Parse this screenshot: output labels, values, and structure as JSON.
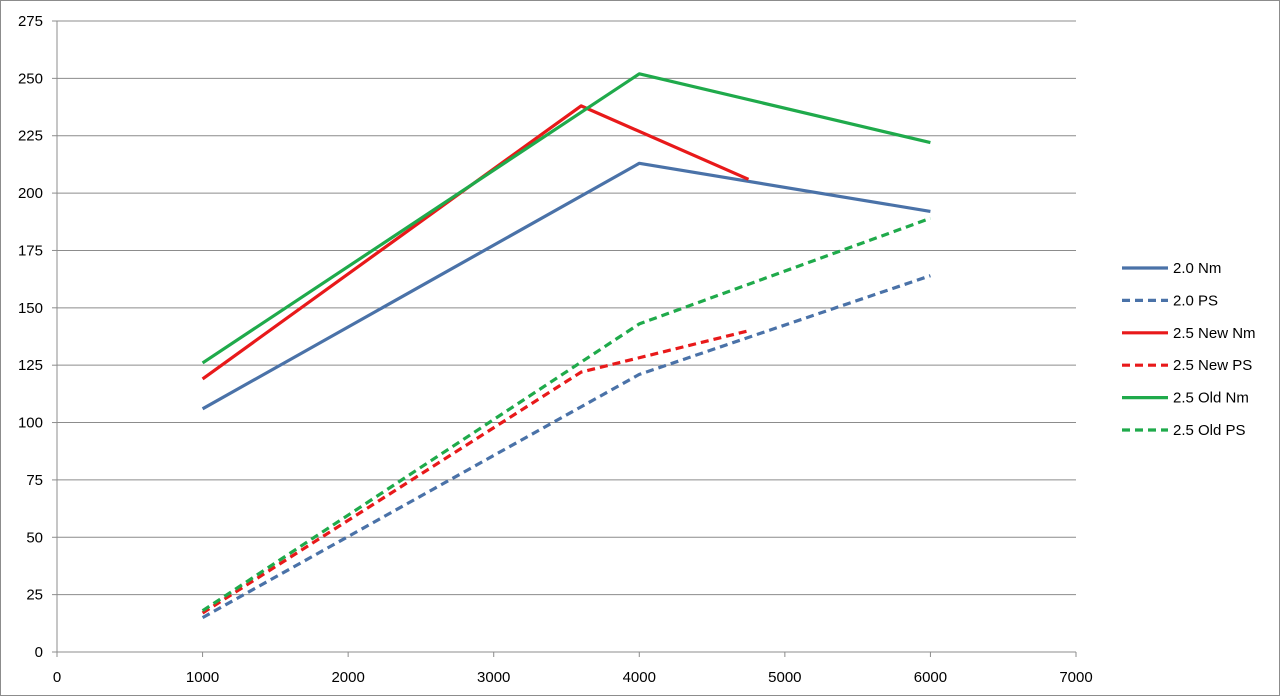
{
  "chart_data": {
    "type": "line",
    "title": "",
    "xlabel": "",
    "ylabel": "",
    "xlim": [
      0,
      7000
    ],
    "ylim": [
      0,
      275
    ],
    "x_ticks": [
      0,
      1000,
      2000,
      3000,
      4000,
      5000,
      6000,
      7000
    ],
    "y_ticks": [
      0,
      25,
      50,
      75,
      100,
      125,
      150,
      175,
      200,
      225,
      250,
      275
    ],
    "grid": "horizontal",
    "legend_position": "right",
    "series": [
      {
        "name": "2.0 Nm",
        "color": "#4a72a8",
        "dashed": false,
        "x": [
          1000,
          4000,
          6000
        ],
        "y": [
          106,
          213,
          192
        ]
      },
      {
        "name": "2.0 PS",
        "color": "#4a72a8",
        "dashed": true,
        "x": [
          1000,
          4000,
          6000
        ],
        "y": [
          15,
          121,
          164
        ]
      },
      {
        "name": "2.5 New Nm",
        "color": "#e8191a",
        "dashed": false,
        "x": [
          1000,
          3600,
          4750
        ],
        "y": [
          119,
          238,
          206
        ]
      },
      {
        "name": "2.5 New PS",
        "color": "#e8191a",
        "dashed": true,
        "x": [
          1000,
          3600,
          4750
        ],
        "y": [
          17,
          122,
          140
        ]
      },
      {
        "name": "2.5 Old Nm",
        "color": "#1faa4b",
        "dashed": false,
        "x": [
          1000,
          4000,
          6000
        ],
        "y": [
          126,
          252,
          222
        ]
      },
      {
        "name": "2.5 Old PS",
        "color": "#1faa4b",
        "dashed": true,
        "x": [
          1000,
          4000,
          6000
        ],
        "y": [
          18,
          143,
          189
        ]
      }
    ]
  }
}
